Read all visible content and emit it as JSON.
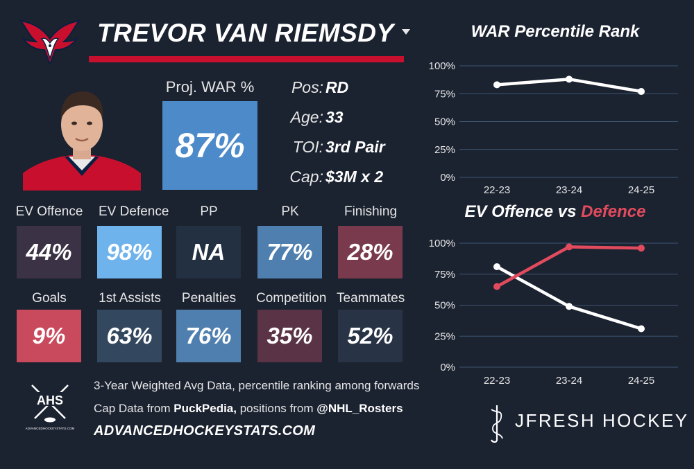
{
  "player": {
    "name": "TREVOR VAN RIEMSDY",
    "proj_war_label": "Proj. WAR %",
    "proj_war_value": "87%"
  },
  "info": [
    {
      "label": "Pos:",
      "value": "RD"
    },
    {
      "label": "Age:",
      "value": "33"
    },
    {
      "label": "TOI:",
      "value": "3rd Pair"
    },
    {
      "label": "Cap:",
      "value": "$3M x 2"
    }
  ],
  "tiles_row1": [
    {
      "label": "EV Offence",
      "value": "44%",
      "color": "#3b3345"
    },
    {
      "label": "EV Defence",
      "value": "98%",
      "color": "#6fb3ec"
    },
    {
      "label": "PP",
      "value": "NA",
      "color": "#223042"
    },
    {
      "label": "PK",
      "value": "77%",
      "color": "#4f7fae"
    },
    {
      "label": "Finishing",
      "value": "28%",
      "color": "#7a3a4d"
    }
  ],
  "tiles_row2": [
    {
      "label": "Goals",
      "value": "9%",
      "color": "#c94a5c"
    },
    {
      "label": "1st Assists",
      "value": "63%",
      "color": "#33475f"
    },
    {
      "label": "Penalties",
      "value": "76%",
      "color": "#4f7fae"
    },
    {
      "label": "Competition",
      "value": "35%",
      "color": "#5a3446"
    },
    {
      "label": "Teammates",
      "value": "52%",
      "color": "#283445"
    }
  ],
  "footer": {
    "line1": "3-Year Weighted Avg Data, percentile ranking among forwards",
    "line2_pre": "Cap Data from ",
    "line2_bold1": "PuckPedia,",
    "line2_mid": " positions from ",
    "line2_bold2": "@NHL_Rosters",
    "site": "ADVANCEDHOCKEYSTATS.COM",
    "ahs_label": "AHS",
    "ahs_url": "ADVANCEDHOCKEYSTATS.COM",
    "brand": "JFRESH HOCKEY"
  },
  "chart_data": [
    {
      "type": "line",
      "title": "WAR Percentile Rank",
      "categories": [
        "22-23",
        "23-24",
        "24-25"
      ],
      "yticks": [
        "100%",
        "75%",
        "50%",
        "25%",
        "0%"
      ],
      "ylim": [
        0,
        100
      ],
      "series": [
        {
          "name": "WAR",
          "values": [
            83,
            88,
            77
          ],
          "color": "#ffffff"
        }
      ]
    },
    {
      "type": "line",
      "title_part1": "EV Offence vs ",
      "title_part2": "Defence",
      "categories": [
        "22-23",
        "23-24",
        "24-25"
      ],
      "yticks": [
        "100%",
        "75%",
        "50%",
        "25%",
        "0%"
      ],
      "ylim": [
        0,
        100
      ],
      "series": [
        {
          "name": "EV Offence",
          "values": [
            81,
            49,
            31
          ],
          "color": "#ffffff"
        },
        {
          "name": "EV Defence",
          "values": [
            65,
            97,
            96
          ],
          "color": "#e24b5e"
        }
      ]
    }
  ]
}
